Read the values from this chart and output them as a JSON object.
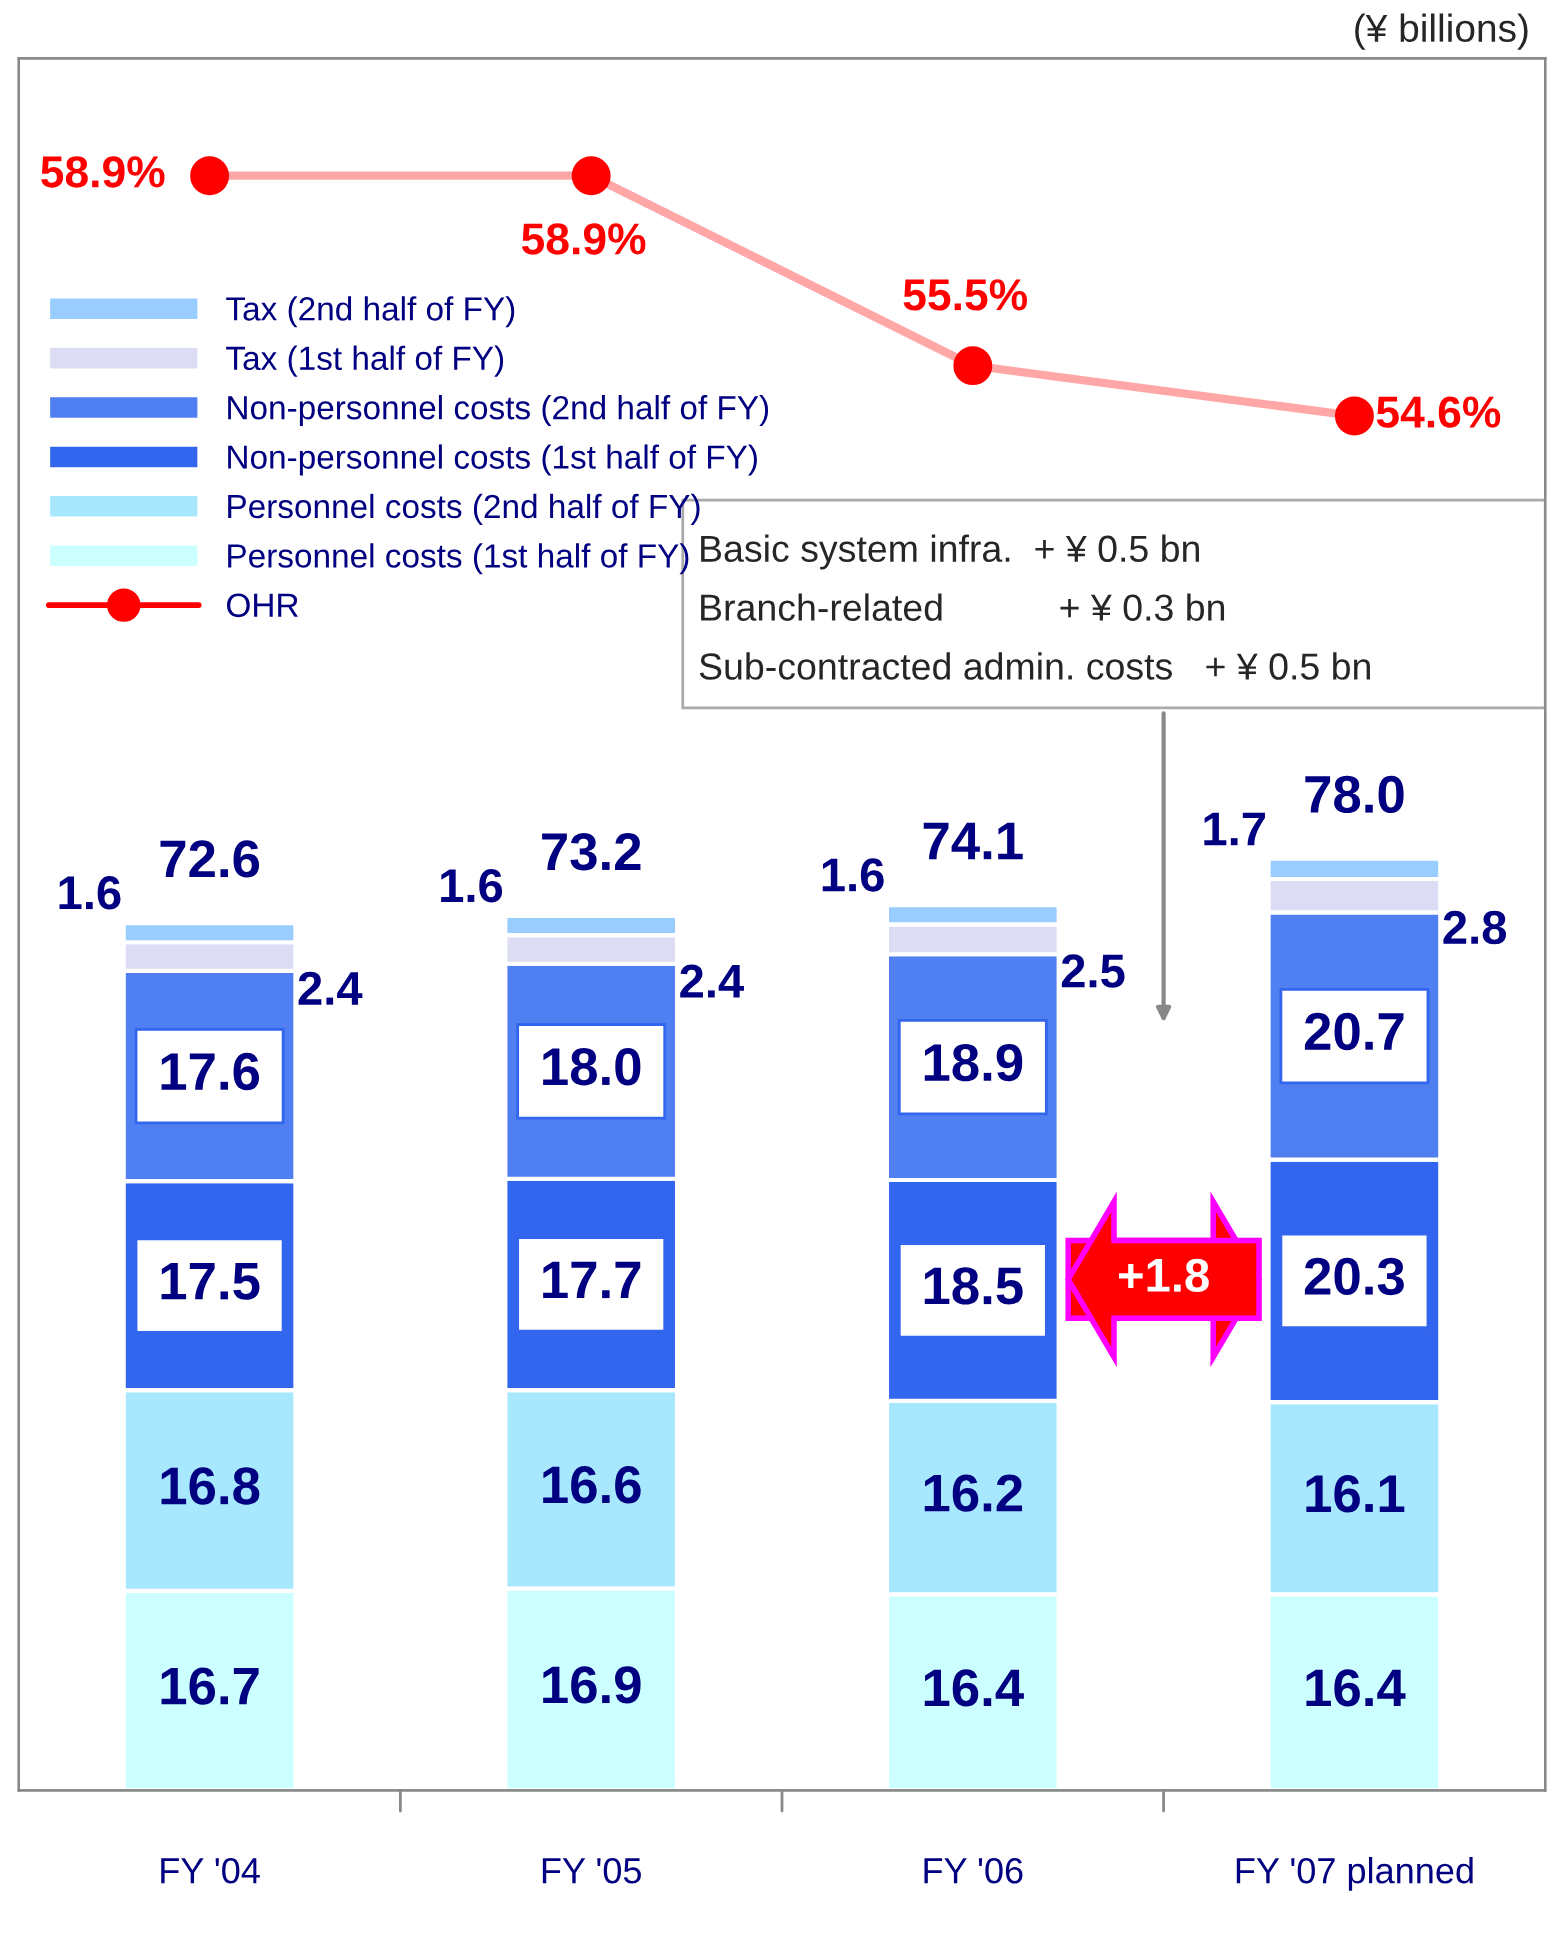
{
  "chart_data": {
    "type": "bar",
    "stacked": true,
    "categories": [
      "FY '04",
      "FY '05",
      "FY '06",
      "FY '07 planned"
    ],
    "series": [
      {
        "name": "Personnel costs (1st half of FY)",
        "color": "#ccffff",
        "values": [
          16.7,
          16.9,
          16.4,
          16.4
        ]
      },
      {
        "name": "Personnel costs (2nd half of FY)",
        "color": "#a8e8ff",
        "values": [
          16.8,
          16.6,
          16.2,
          16.1
        ]
      },
      {
        "name": "Non-personnel costs (1st half of FY)",
        "color": "#3366ee",
        "values": [
          17.5,
          17.7,
          18.5,
          20.3
        ]
      },
      {
        "name": "Non-personnel costs (2nd half of FY)",
        "color": "#4f7ff0",
        "values": [
          17.6,
          18.0,
          18.9,
          20.7
        ],
        "value_labels": [
          "17.6",
          "18.0",
          "18.9",
          "20.7"
        ]
      },
      {
        "name": "Tax (1st half of FY)",
        "color": "#dcdcf4",
        "values": [
          2.4,
          2.4,
          2.5,
          2.8
        ]
      },
      {
        "name": "Tax (2nd half of FY)",
        "color": "#99ccff",
        "values": [
          1.6,
          1.6,
          1.6,
          1.7
        ]
      },
      {
        "name": "OHR",
        "type": "line",
        "axis": "y2",
        "color": "#ff0000",
        "marker": "circle",
        "values": [
          58.9,
          58.9,
          55.5,
          54.6
        ],
        "value_labels": [
          "58.9%",
          "58.9%",
          "55.5%",
          "54.6%"
        ]
      }
    ],
    "totals": [
      "72.6",
      "73.2",
      "74.1",
      "78.0"
    ],
    "data_labels": true,
    "ylim": [
      0,
      145
    ],
    "y2lim": [
      30,
      61
    ],
    "tick_labels": "x",
    "legend": "top left",
    "annotations": [
      "(¥ billions)",
      "Basic system infra.  + ¥ 0.5 bn",
      "Branch-related           + ¥ 0.3 bn",
      "Sub-contracted admin. costs   + ¥ 0.5 bn",
      "+1.8"
    ]
  }
}
